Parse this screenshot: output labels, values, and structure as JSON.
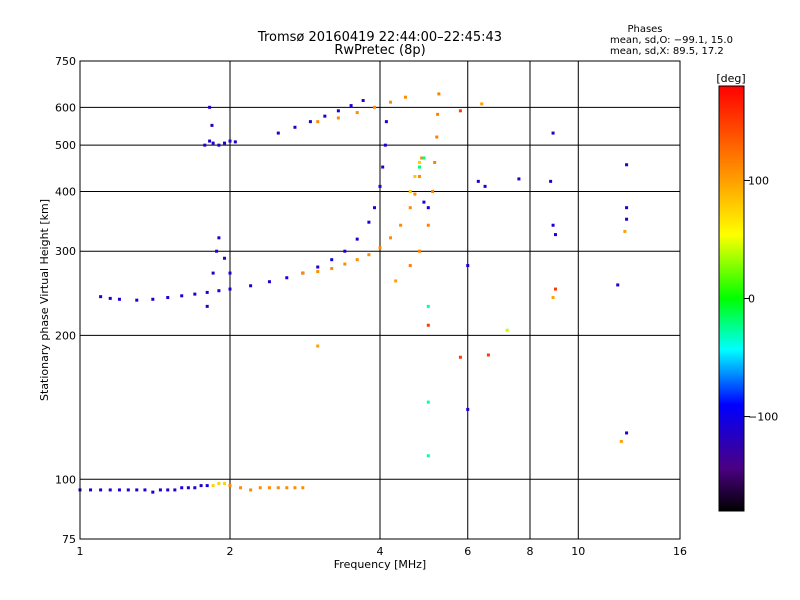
{
  "chart_data": {
    "type": "scatter",
    "title": "Tromsø 20160419 22:44:00–22:45:43",
    "subtitle": "RwPretec (8p)",
    "xlabel": "Frequency [MHz]",
    "ylabel": "Stationary phase Virtual Height [km]",
    "x_scale": "log",
    "y_scale": "log",
    "xlim": [
      1,
      16
    ],
    "ylim": [
      75,
      750
    ],
    "x_ticks": [
      1,
      2,
      4,
      6,
      8,
      10,
      16
    ],
    "x_tick_labels": [
      "1",
      "2",
      "4",
      "6",
      "8",
      "10",
      "16"
    ],
    "y_ticks": [
      75,
      100,
      200,
      300,
      400,
      500,
      600,
      750
    ],
    "y_tick_labels": [
      "75",
      "100",
      "200",
      "300",
      "400",
      "500",
      "600",
      "750"
    ],
    "grid": true,
    "legend_box": {
      "heading": "Phases",
      "line1": "mean, sd,O: −99.1, 15.0",
      "line2": "mean, sd,X:  89.5, 17.2"
    },
    "colorbar": {
      "label": "[deg]",
      "ticks": [
        100,
        0,
        -100
      ],
      "tick_labels": [
        "100",
        "0",
        "−100"
      ],
      "range": [
        -180,
        180
      ]
    },
    "series": [
      {
        "phase": -110,
        "points": [
          [
            1.0,
            95
          ],
          [
            1.05,
            95
          ],
          [
            1.1,
            95
          ],
          [
            1.15,
            95
          ],
          [
            1.2,
            95
          ],
          [
            1.25,
            95
          ],
          [
            1.3,
            95
          ],
          [
            1.35,
            95
          ],
          [
            1.4,
            94
          ],
          [
            1.45,
            95
          ],
          [
            1.5,
            95
          ],
          [
            1.55,
            95
          ],
          [
            1.6,
            96
          ],
          [
            1.65,
            96
          ],
          [
            1.7,
            96
          ],
          [
            1.75,
            97
          ],
          [
            1.8,
            97
          ]
        ]
      },
      {
        "phase": 75,
        "points": [
          [
            1.85,
            97
          ],
          [
            1.9,
            98
          ],
          [
            1.95,
            98
          ]
        ]
      },
      {
        "phase": 110,
        "points": [
          [
            2.0,
            97
          ],
          [
            2.1,
            96
          ],
          [
            2.2,
            95
          ],
          [
            2.3,
            96
          ],
          [
            2.4,
            96
          ],
          [
            2.5,
            96
          ],
          [
            2.6,
            96
          ],
          [
            2.7,
            96
          ],
          [
            2.8,
            96
          ]
        ]
      },
      {
        "phase": -110,
        "points": [
          [
            1.1,
            241
          ],
          [
            1.15,
            239
          ],
          [
            1.2,
            238
          ],
          [
            1.3,
            237
          ],
          [
            1.4,
            238
          ],
          [
            1.5,
            240
          ],
          [
            1.6,
            242
          ],
          [
            1.7,
            244
          ],
          [
            1.8,
            246
          ],
          [
            1.9,
            248
          ],
          [
            2.0,
            250
          ],
          [
            2.2,
            254
          ],
          [
            2.4,
            259
          ],
          [
            2.6,
            264
          ],
          [
            2.8,
            270
          ],
          [
            3.0,
            278
          ],
          [
            3.2,
            288
          ],
          [
            3.4,
            300
          ],
          [
            3.6,
            318
          ],
          [
            3.8,
            345
          ],
          [
            3.9,
            370
          ],
          [
            4.0,
            410
          ],
          [
            4.05,
            450
          ],
          [
            4.1,
            500
          ],
          [
            4.12,
            560
          ]
        ]
      },
      {
        "phase": -115,
        "points": [
          [
            1.8,
            230
          ],
          [
            1.85,
            270
          ],
          [
            1.88,
            300
          ],
          [
            1.9,
            320
          ],
          [
            1.95,
            290
          ],
          [
            2.0,
            270
          ]
        ]
      },
      {
        "phase": -112,
        "points": [
          [
            1.78,
            500
          ],
          [
            1.82,
            510
          ],
          [
            1.85,
            505
          ],
          [
            1.9,
            500
          ],
          [
            1.95,
            505
          ],
          [
            2.0,
            510
          ],
          [
            2.05,
            508
          ]
        ]
      },
      {
        "phase": -115,
        "points": [
          [
            1.82,
            600
          ],
          [
            1.84,
            550
          ]
        ]
      },
      {
        "phase": -110,
        "points": [
          [
            2.5,
            530
          ],
          [
            2.7,
            545
          ],
          [
            2.9,
            560
          ],
          [
            3.1,
            575
          ],
          [
            3.3,
            590
          ],
          [
            3.5,
            605
          ],
          [
            3.7,
            620
          ]
        ]
      },
      {
        "phase": 110,
        "points": [
          [
            3.0,
            560
          ],
          [
            3.3,
            570
          ],
          [
            3.6,
            585
          ],
          [
            3.9,
            600
          ],
          [
            4.2,
            615
          ],
          [
            4.5,
            630
          ]
        ]
      },
      {
        "phase": 110,
        "points": [
          [
            2.8,
            270
          ],
          [
            3.0,
            272
          ],
          [
            3.2,
            276
          ],
          [
            3.4,
            282
          ],
          [
            3.6,
            288
          ],
          [
            3.8,
            295
          ],
          [
            4.0,
            305
          ],
          [
            4.2,
            320
          ],
          [
            4.4,
            340
          ],
          [
            4.6,
            370
          ],
          [
            4.7,
            395
          ],
          [
            4.8,
            430
          ],
          [
            4.85,
            470
          ]
        ]
      },
      {
        "phase": 115,
        "points": [
          [
            4.6,
            280
          ],
          [
            4.8,
            300
          ],
          [
            5.0,
            340
          ],
          [
            5.1,
            400
          ],
          [
            5.15,
            460
          ],
          [
            5.2,
            520
          ],
          [
            5.22,
            580
          ],
          [
            5.25,
            640
          ]
        ]
      },
      {
        "phase": 80,
        "points": [
          [
            4.6,
            400
          ],
          [
            4.7,
            430
          ],
          [
            4.8,
            460
          ]
        ]
      },
      {
        "phase": -20,
        "points": [
          [
            4.8,
            450
          ],
          [
            4.9,
            470
          ]
        ]
      },
      {
        "phase": -105,
        "points": [
          [
            4.9,
            380
          ],
          [
            5.0,
            370
          ]
        ]
      },
      {
        "phase": -110,
        "points": [
          [
            6.0,
            280
          ],
          [
            6.0,
            140
          ],
          [
            6.3,
            420
          ],
          [
            6.5,
            410
          ],
          [
            7.6,
            425
          ],
          [
            8.8,
            420
          ],
          [
            8.9,
            340
          ],
          [
            9.0,
            325
          ],
          [
            8.9,
            530
          ],
          [
            12.0,
            255
          ],
          [
            12.5,
            455
          ],
          [
            12.5,
            370
          ],
          [
            12.5,
            350
          ],
          [
            12.5,
            125
          ]
        ]
      },
      {
        "phase": 150,
        "points": [
          [
            5.8,
            180
          ],
          [
            6.6,
            182
          ],
          [
            5.0,
            210
          ],
          [
            9.0,
            250
          ],
          [
            5.8,
            590
          ]
        ]
      },
      {
        "phase": 100,
        "points": [
          [
            6.4,
            610
          ],
          [
            3.0,
            190
          ],
          [
            4.3,
            260
          ],
          [
            8.9,
            240
          ],
          [
            12.2,
            120
          ],
          [
            12.4,
            330
          ]
        ]
      },
      {
        "phase": 40,
        "points": [
          [
            7.2,
            205
          ]
        ]
      },
      {
        "phase": -30,
        "points": [
          [
            5.0,
            230
          ],
          [
            5.0,
            145
          ],
          [
            5.0,
            112
          ]
        ]
      }
    ]
  }
}
